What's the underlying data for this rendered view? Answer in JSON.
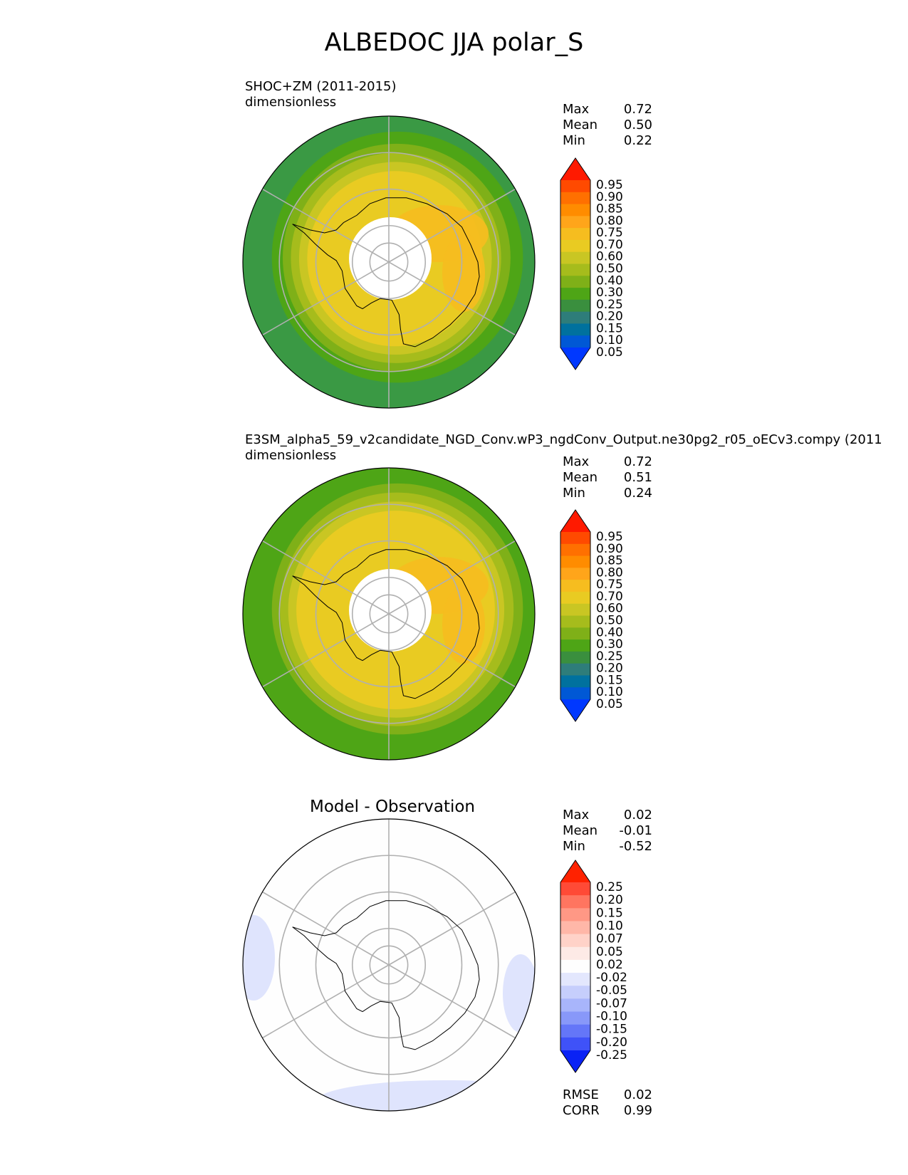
{
  "title": "ALBEDOC JJA polar_S",
  "panels": [
    {
      "title": "SHOC+ZM (2011-2015)",
      "units": "dimensionless",
      "stats": [
        {
          "label": "Max",
          "value": "0.72"
        },
        {
          "label": "Mean",
          "value": "0.50"
        },
        {
          "label": "Min",
          "value": "0.22"
        }
      ]
    },
    {
      "title": "E3SM_alpha5_59_v2candidate_NGD_Conv.wP3_ngdConv_Output.ne30pg2_r05_oECv3.compy (2011",
      "units": "dimensionless",
      "stats": [
        {
          "label": "Max",
          "value": "0.72"
        },
        {
          "label": "Mean",
          "value": "0.51"
        },
        {
          "label": "Min",
          "value": "0.24"
        }
      ]
    },
    {
      "title": "Model - Observation",
      "units": "",
      "stats": [
        {
          "label": "Max",
          "value": "0.02"
        },
        {
          "label": "Mean",
          "value": "-0.01"
        },
        {
          "label": "Min",
          "value": "-0.52"
        }
      ],
      "extra_stats": [
        {
          "label": "RMSE",
          "value": "0.02"
        },
        {
          "label": "CORR",
          "value": "0.99"
        }
      ]
    }
  ],
  "colorbars": [
    {
      "ticks": [
        "0.95",
        "0.90",
        "0.85",
        "0.80",
        "0.75",
        "0.70",
        "0.60",
        "0.50",
        "0.40",
        "0.30",
        "0.25",
        "0.20",
        "0.15",
        "0.10",
        "0.05"
      ],
      "colors": [
        "#ff1a00",
        "#ff4a00",
        "#ff7000",
        "#ff8c00",
        "#ffa51a",
        "#f6bd1f",
        "#e9cb22",
        "#c9c623",
        "#a6bc1c",
        "#7fb018",
        "#4ea516",
        "#3a8f3e",
        "#2e7d7a",
        "#00719e",
        "#0058d5",
        "#0038ff"
      ]
    },
    {
      "ticks": [
        "0.95",
        "0.90",
        "0.85",
        "0.80",
        "0.75",
        "0.70",
        "0.60",
        "0.50",
        "0.40",
        "0.30",
        "0.25",
        "0.20",
        "0.15",
        "0.10",
        "0.05"
      ],
      "colors": [
        "#ff1a00",
        "#ff4a00",
        "#ff7000",
        "#ff8c00",
        "#ffa51a",
        "#f6bd1f",
        "#e9cb22",
        "#c9c623",
        "#a6bc1c",
        "#7fb018",
        "#4ea516",
        "#3a8f3e",
        "#2e7d7a",
        "#00719e",
        "#0058d5",
        "#0038ff"
      ]
    },
    {
      "ticks": [
        "0.25",
        "0.20",
        "0.15",
        "0.10",
        "0.07",
        "0.05",
        "0.02",
        "-0.02",
        "-0.05",
        "-0.07",
        "-0.10",
        "-0.15",
        "-0.20",
        "-0.25"
      ],
      "colors": [
        "#ff2200",
        "#ff4a36",
        "#ff7560",
        "#ff9885",
        "#ffb7a8",
        "#ffd2c8",
        "#fdeae6",
        "#fefefe",
        "#e3e7fd",
        "#c6cefc",
        "#a8b5fb",
        "#8898f9",
        "#6476f8",
        "#3f52f8",
        "#0a22f5"
      ]
    }
  ],
  "chart_data": [
    {
      "type": "heatmap",
      "title": "SHOC+ZM (2011-2015)",
      "units": "dimensionless",
      "projection": "south polar stereographic",
      "max": 0.72,
      "mean": 0.5,
      "min": 0.22,
      "colorbar_levels": [
        0.05,
        0.1,
        0.15,
        0.2,
        0.25,
        0.3,
        0.4,
        0.5,
        0.6,
        0.7,
        0.75,
        0.8,
        0.85,
        0.9,
        0.95
      ]
    },
    {
      "type": "heatmap",
      "title": "E3SM_alpha5_59_v2candidate_NGD_Conv.wP3_ngdConv_Output.ne30pg2_r05_oECv3.compy (2011",
      "units": "dimensionless",
      "projection": "south polar stereographic",
      "max": 0.72,
      "mean": 0.51,
      "min": 0.24,
      "colorbar_levels": [
        0.05,
        0.1,
        0.15,
        0.2,
        0.25,
        0.3,
        0.4,
        0.5,
        0.6,
        0.7,
        0.75,
        0.8,
        0.85,
        0.9,
        0.95
      ]
    },
    {
      "type": "heatmap",
      "title": "Model - Observation",
      "projection": "south polar stereographic",
      "max": 0.02,
      "mean": -0.01,
      "min": -0.52,
      "rmse": 0.02,
      "corr": 0.99,
      "colorbar_levels": [
        -0.25,
        -0.2,
        -0.15,
        -0.1,
        -0.07,
        -0.05,
        -0.02,
        0.02,
        0.05,
        0.07,
        0.1,
        0.15,
        0.2,
        0.25
      ]
    }
  ]
}
